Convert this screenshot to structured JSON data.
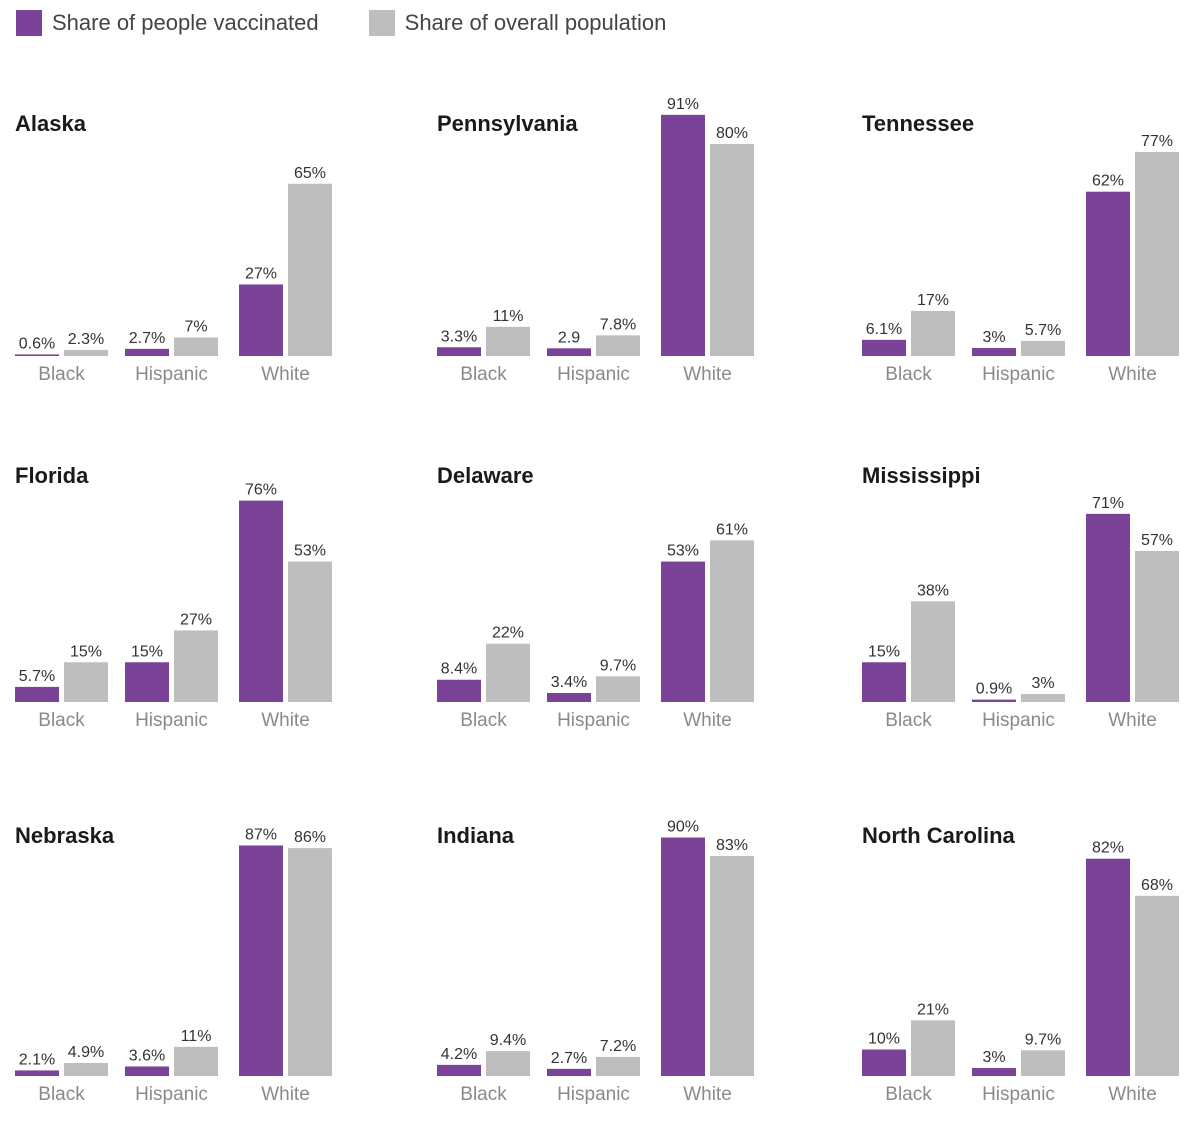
{
  "legend": {
    "vaccinated_label": "Share of people vaccinated",
    "population_label": "Share of overall population"
  },
  "colors": {
    "vaccinated": "#7b4397",
    "population": "#bfbebf"
  },
  "chart_data": [
    {
      "type": "bar",
      "title": "Alaska",
      "categories": [
        "Black",
        "Hispanic",
        "White"
      ],
      "series": [
        {
          "name": "Share of people vaccinated",
          "values": [
            0.6,
            2.7,
            27
          ],
          "labels": [
            "0.6%",
            "2.7%",
            "27%"
          ]
        },
        {
          "name": "Share of overall population",
          "values": [
            2.3,
            7,
            65
          ],
          "labels": [
            "2.3%",
            "7%",
            "65%"
          ]
        }
      ]
    },
    {
      "type": "bar",
      "title": "Pennsylvania",
      "categories": [
        "Black",
        "Hispanic",
        "White"
      ],
      "series": [
        {
          "name": "Share of people vaccinated",
          "values": [
            3.3,
            2.9,
            91
          ],
          "labels": [
            "3.3%",
            "2.9",
            "91%"
          ]
        },
        {
          "name": "Share of overall population",
          "values": [
            11,
            7.8,
            80
          ],
          "labels": [
            "11%",
            "7.8%",
            "80%"
          ]
        }
      ]
    },
    {
      "type": "bar",
      "title": "Tennessee",
      "categories": [
        "Black",
        "Hispanic",
        "White"
      ],
      "series": [
        {
          "name": "Share of people vaccinated",
          "values": [
            6.1,
            3,
            62
          ],
          "labels": [
            "6.1%",
            "3%",
            "62%"
          ]
        },
        {
          "name": "Share of overall population",
          "values": [
            17,
            5.7,
            77
          ],
          "labels": [
            "17%",
            "5.7%",
            "77%"
          ]
        }
      ]
    },
    {
      "type": "bar",
      "title": "Florida",
      "categories": [
        "Black",
        "Hispanic",
        "White"
      ],
      "series": [
        {
          "name": "Share of people vaccinated",
          "values": [
            5.7,
            15,
            76
          ],
          "labels": [
            "5.7%",
            "15%",
            "76%"
          ]
        },
        {
          "name": "Share of overall population",
          "values": [
            15,
            27,
            53
          ],
          "labels": [
            "15%",
            "27%",
            "53%"
          ]
        }
      ]
    },
    {
      "type": "bar",
      "title": "Delaware",
      "categories": [
        "Black",
        "Hispanic",
        "White"
      ],
      "series": [
        {
          "name": "Share of people vaccinated",
          "values": [
            8.4,
            3.4,
            53
          ],
          "labels": [
            "8.4%",
            "3.4%",
            "53%"
          ]
        },
        {
          "name": "Share of overall population",
          "values": [
            22,
            9.7,
            61
          ],
          "labels": [
            "22%",
            "9.7%",
            "61%"
          ]
        }
      ]
    },
    {
      "type": "bar",
      "title": "Mississippi",
      "categories": [
        "Black",
        "Hispanic",
        "White"
      ],
      "series": [
        {
          "name": "Share of people vaccinated",
          "values": [
            15,
            0.9,
            71
          ],
          "labels": [
            "15%",
            "0.9%",
            "71%"
          ]
        },
        {
          "name": "Share of overall population",
          "values": [
            38,
            3,
            57
          ],
          "labels": [
            "38%",
            "3%",
            "57%"
          ]
        }
      ]
    },
    {
      "type": "bar",
      "title": "Nebraska",
      "categories": [
        "Black",
        "Hispanic",
        "White"
      ],
      "series": [
        {
          "name": "Share of people vaccinated",
          "values": [
            2.1,
            3.6,
            87
          ],
          "labels": [
            "2.1%",
            "3.6%",
            "87%"
          ]
        },
        {
          "name": "Share of overall population",
          "values": [
            4.9,
            11,
            86
          ],
          "labels": [
            "4.9%",
            "11%",
            "86%"
          ]
        }
      ]
    },
    {
      "type": "bar",
      "title": "Indiana",
      "categories": [
        "Black",
        "Hispanic",
        "White"
      ],
      "series": [
        {
          "name": "Share of people vaccinated",
          "values": [
            4.2,
            2.7,
            90
          ],
          "labels": [
            "4.2%",
            "2.7%",
            "90%"
          ]
        },
        {
          "name": "Share of overall population",
          "values": [
            9.4,
            7.2,
            83
          ],
          "labels": [
            "9.4%",
            "7.2%",
            "83%"
          ]
        }
      ]
    },
    {
      "type": "bar",
      "title": "North Carolina",
      "categories": [
        "Black",
        "Hispanic",
        "White"
      ],
      "series": [
        {
          "name": "Share of people vaccinated",
          "values": [
            10,
            3,
            82
          ],
          "labels": [
            "10%",
            "3%",
            "82%"
          ]
        },
        {
          "name": "Share of overall population",
          "values": [
            21,
            9.7,
            68
          ],
          "labels": [
            "21%",
            "9.7%",
            "68%"
          ]
        }
      ]
    }
  ]
}
